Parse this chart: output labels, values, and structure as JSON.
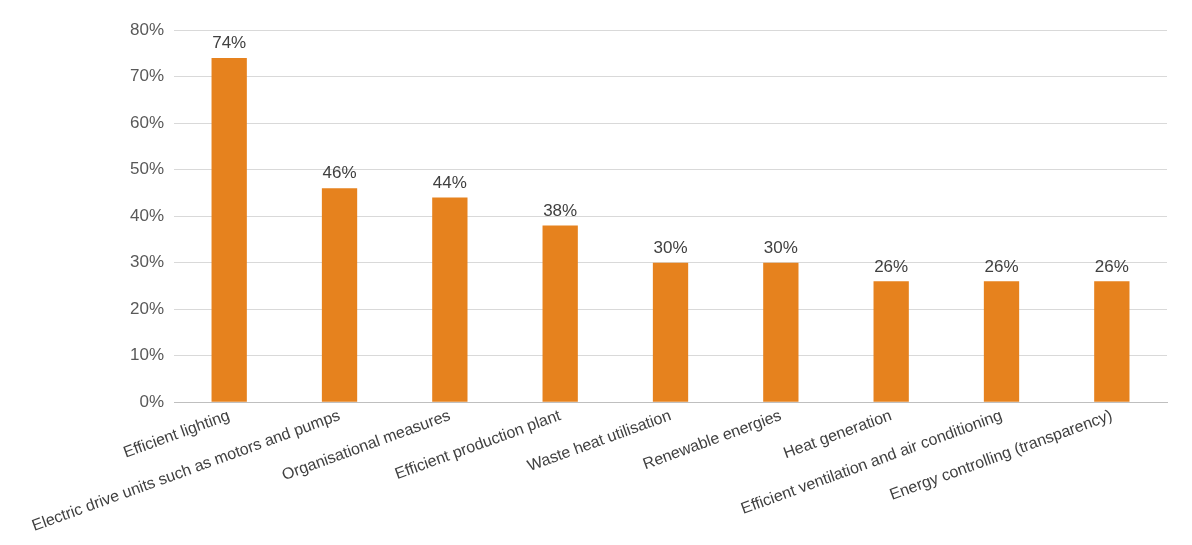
{
  "chart_data": {
    "type": "bar",
    "categories": [
      "Efficient lighting",
      "Electric drive units such as motors and pumps",
      "Organisational measures",
      "Efficient production plant",
      "Waste heat utilisation",
      "Renewable energies",
      "Heat generation",
      "Efficient ventilation and air conditioning",
      "Energy controlling (transparency)"
    ],
    "values": [
      74,
      46,
      44,
      38,
      30,
      30,
      26,
      26,
      26
    ],
    "value_labels": [
      "74%",
      "46%",
      "44%",
      "38%",
      "30%",
      "30%",
      "26%",
      "26%",
      "26%"
    ],
    "color": "#e6821e",
    "ylim": [
      0,
      80
    ],
    "yticks": [
      {
        "value": 0,
        "label": "0%"
      },
      {
        "value": 10,
        "label": "10%"
      },
      {
        "value": 20,
        "label": "20%"
      },
      {
        "value": 30,
        "label": "30%"
      },
      {
        "value": 40,
        "label": "40%"
      },
      {
        "value": 50,
        "label": "50%"
      },
      {
        "value": 60,
        "label": "60%"
      },
      {
        "value": 70,
        "label": "70%"
      },
      {
        "value": 80,
        "label": "80%"
      }
    ],
    "grid": "y",
    "legend": false
  }
}
